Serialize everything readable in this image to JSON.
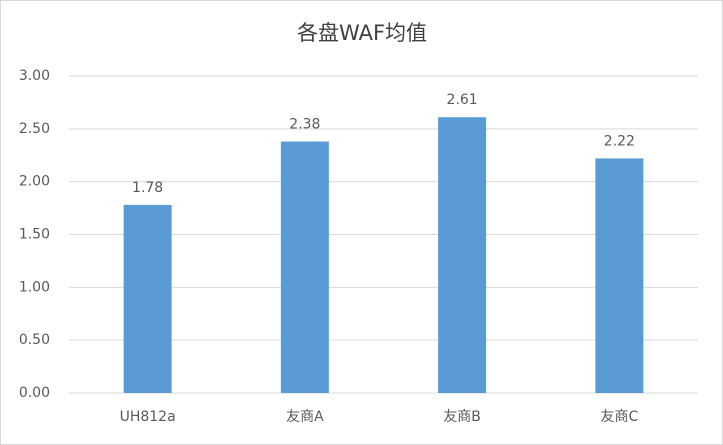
{
  "chart_data": {
    "type": "bar",
    "title": "各盘WAF均值",
    "categories": [
      "UH812a",
      "友商A",
      "友商B",
      "友商C"
    ],
    "values": [
      1.78,
      2.38,
      2.61,
      2.22
    ],
    "color": "#5b9bd5",
    "ylim": [
      0,
      3
    ],
    "yticks": [
      {
        "value": 0,
        "label": "0.00"
      },
      {
        "value": 0.5,
        "label": "0.50"
      },
      {
        "value": 1,
        "label": "1.00"
      },
      {
        "value": 1.5,
        "label": "1.50"
      },
      {
        "value": 2,
        "label": "2.00"
      },
      {
        "value": 2.5,
        "label": "2.50"
      },
      {
        "value": 3,
        "label": "3.00"
      }
    ],
    "grid": true
  }
}
